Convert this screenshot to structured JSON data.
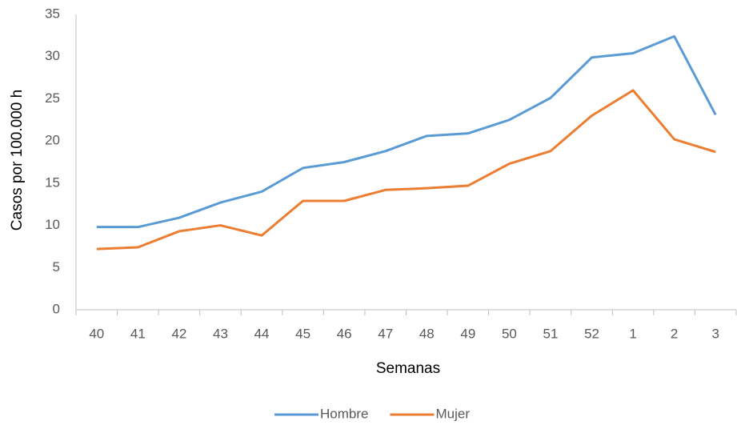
{
  "chart_data": {
    "type": "line",
    "x_label": "Semanas",
    "y_label": "Casos por 100.000 h",
    "categories": [
      "40",
      "41",
      "42",
      "43",
      "44",
      "45",
      "46",
      "47",
      "48",
      "49",
      "50",
      "51",
      "52",
      "1",
      "2",
      "3"
    ],
    "series": [
      {
        "name": "Hombre",
        "color": "#5b9bd5",
        "values": [
          9.8,
          9.8,
          10.9,
          12.7,
          14.0,
          16.8,
          17.5,
          18.8,
          20.6,
          20.9,
          22.5,
          25.1,
          29.9,
          30.4,
          32.4,
          23.1
        ]
      },
      {
        "name": "Mujer",
        "color": "#ed7d31",
        "values": [
          7.2,
          7.4,
          9.3,
          10.0,
          8.8,
          12.9,
          12.9,
          14.2,
          14.4,
          14.7,
          17.3,
          18.8,
          23.0,
          26.0,
          20.2,
          18.7
        ]
      }
    ],
    "ylim": [
      0,
      35
    ],
    "yticks": [
      0,
      5,
      10,
      15,
      20,
      25,
      30,
      35
    ],
    "grid": false,
    "legend": "bottom"
  }
}
